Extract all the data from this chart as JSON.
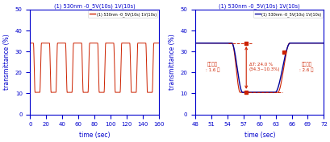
{
  "title": "(1) 530nm -0_5V(10s) 1V(10s)",
  "legend_label_left": "(1) 530nm -0_5V(10s) 1V(10s)",
  "legend_label_right": "(1) 530nm -0_5V(10s) 1V(10s)",
  "ylabel": "transmittance (%)",
  "xlabel": "time (sec)",
  "ylim": [
    0,
    50
  ],
  "xlim_left": [
    0,
    160
  ],
  "xlim_right": [
    48,
    72
  ],
  "xticks_left": [
    0,
    20,
    40,
    60,
    80,
    100,
    120,
    140,
    160
  ],
  "xticks_right": [
    48,
    51,
    54,
    57,
    60,
    63,
    66,
    69,
    72
  ],
  "yticks": [
    0,
    10,
    20,
    30,
    40,
    50
  ],
  "val_high": 34.0,
  "val_low": 10.5,
  "period": 20,
  "color_left": "#cc2200",
  "color_right_blue": "#000099",
  "color_right_red": "#cc2200",
  "annotation_color": "#cc2200",
  "title_color": "#0000cc",
  "legend_color_left": "#cc2200",
  "legend_color_right": "#000099",
  "annot_coloring_speed": "쳉색속도\n: 1.6 초",
  "annot_delta_t": "ΔT: 24.0 %\n(34.3~10.3%)",
  "annot_bleach_speed": "탈색속도\n: 2.6 초",
  "background_color": "#ffffff",
  "axis_color": "#0000cc"
}
